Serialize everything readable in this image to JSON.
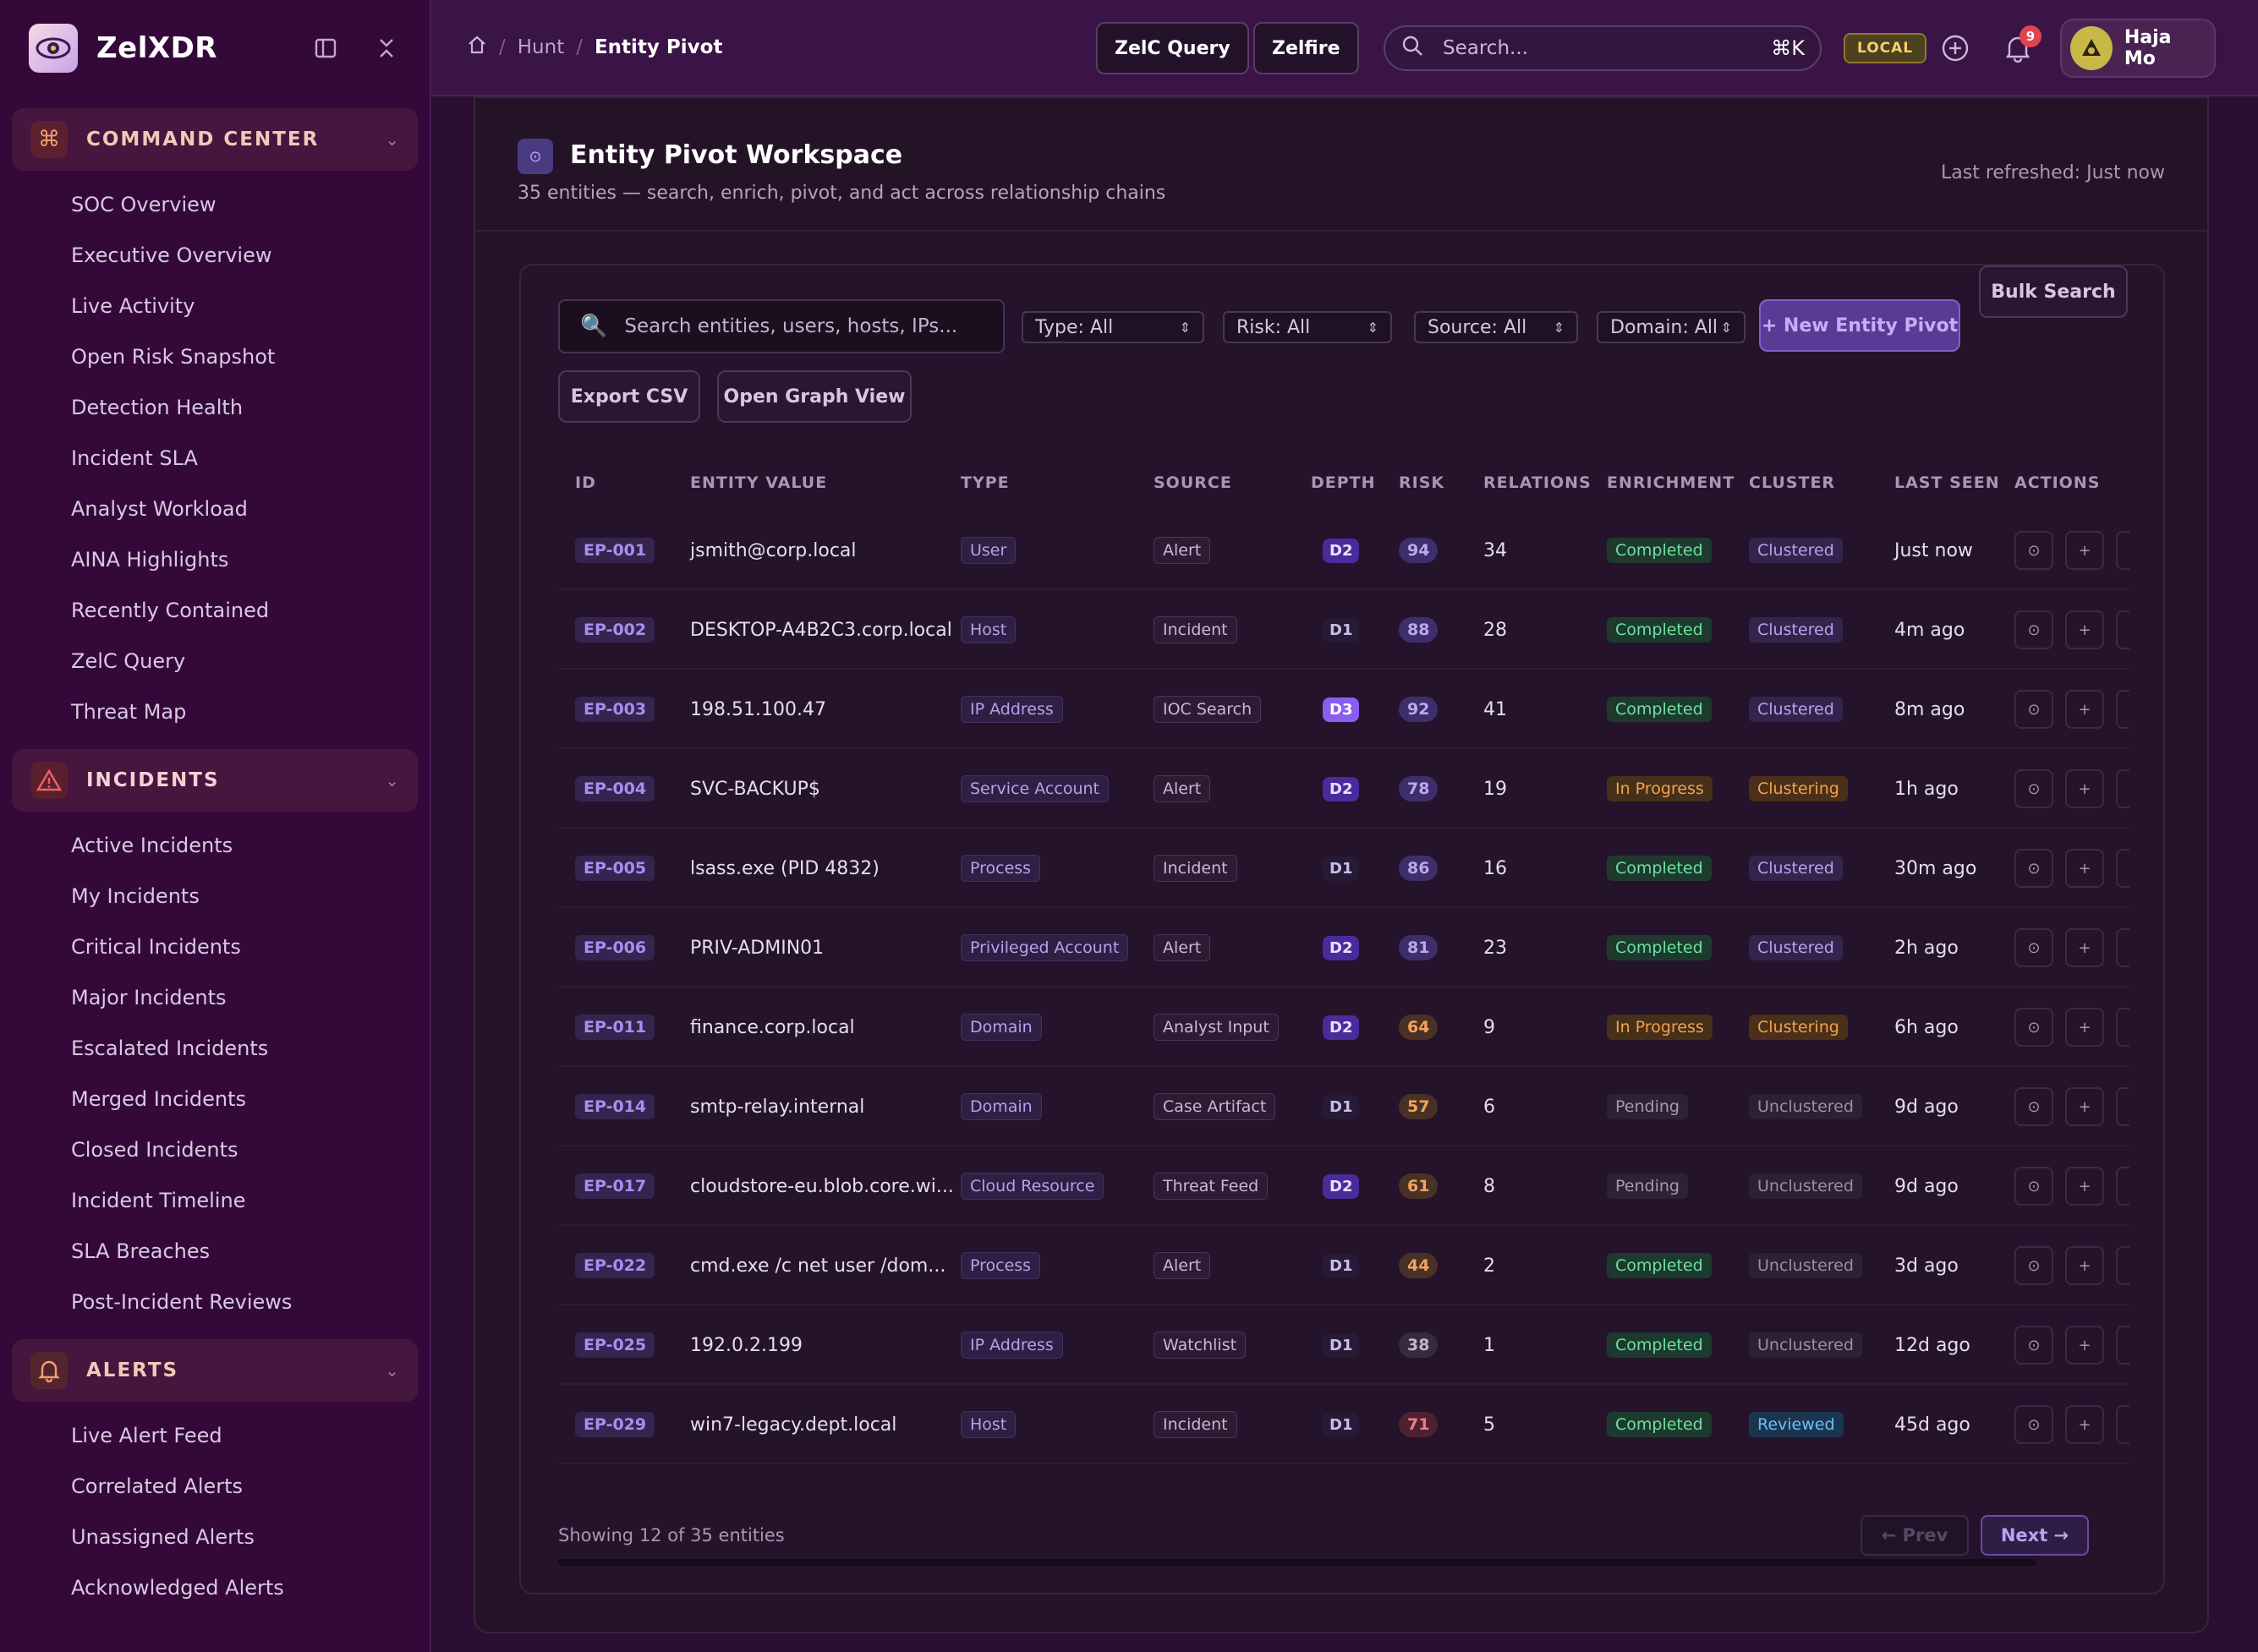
{
  "app": {
    "name": "ZelXDR"
  },
  "sidebar": {
    "sections": [
      {
        "label": "COMMAND CENTER",
        "items": [
          "SOC Overview",
          "Executive Overview",
          "Live Activity",
          "Open Risk Snapshot",
          "Detection Health",
          "Incident SLA",
          "Analyst Workload",
          "AINA Highlights",
          "Recently Contained",
          "ZelC Query",
          "Threat Map"
        ]
      },
      {
        "label": "INCIDENTS",
        "items": [
          "Active Incidents",
          "My Incidents",
          "Critical Incidents",
          "Major Incidents",
          "Escalated Incidents",
          "Merged Incidents",
          "Closed Incidents",
          "Incident Timeline",
          "SLA Breaches",
          "Post-Incident Reviews"
        ]
      },
      {
        "label": "ALERTS",
        "items": [
          "Live Alert Feed",
          "Correlated Alerts",
          "Unassigned Alerts",
          "Acknowledged Alerts"
        ]
      }
    ]
  },
  "topbar": {
    "breadcrumb": [
      "Hunt",
      "Entity Pivot"
    ],
    "zelc_query": "ZelC Query",
    "zelfire": "Zelfire",
    "search_placeholder": "Search...",
    "search_shortcut": "⌘K",
    "env_badge": "LOCAL",
    "notification_count": "9",
    "user_name": "Haja Mo"
  },
  "workspace": {
    "title": "Entity Pivot Workspace",
    "subtitle": "35 entities — search, enrich, pivot, and act across relationship chains",
    "refreshed": "Last refreshed: Just now"
  },
  "toolbar": {
    "search_placeholder": "Search entities, users, hosts, IPs...",
    "type_filter": "Type: All",
    "risk_filter": "Risk: All",
    "source_filter": "Source: All",
    "domain_filter": "Domain: All",
    "new_pivot": "+ New Entity Pivot",
    "bulk_search": "Bulk Search",
    "export_csv": "Export CSV",
    "open_graph": "Open Graph View"
  },
  "table": {
    "columns": [
      "ID",
      "ENTITY VALUE",
      "TYPE",
      "SOURCE",
      "DEPTH",
      "RISK",
      "RELATIONS",
      "ENRICHMENT",
      "CLUSTER",
      "LAST SEEN",
      "ACTIONS"
    ],
    "rows": [
      {
        "id": "EP-001",
        "value": "jsmith@corp.local",
        "type": "User",
        "source": "Alert",
        "depth": "D2",
        "risk": "94",
        "relations": "34",
        "enrichment": "Completed",
        "cluster": "Clustered",
        "last_seen": "Just now"
      },
      {
        "id": "EP-002",
        "value": "DESKTOP-A4B2C3.corp.local",
        "type": "Host",
        "source": "Incident",
        "depth": "D1",
        "risk": "88",
        "relations": "28",
        "enrichment": "Completed",
        "cluster": "Clustered",
        "last_seen": "4m ago"
      },
      {
        "id": "EP-003",
        "value": "198.51.100.47",
        "type": "IP Address",
        "source": "IOC Search",
        "depth": "D3",
        "risk": "92",
        "relations": "41",
        "enrichment": "Completed",
        "cluster": "Clustered",
        "last_seen": "8m ago"
      },
      {
        "id": "EP-004",
        "value": "SVC-BACKUP$",
        "type": "Service Account",
        "source": "Alert",
        "depth": "D2",
        "risk": "78",
        "relations": "19",
        "enrichment": "In Progress",
        "cluster": "Clustering",
        "last_seen": "1h ago"
      },
      {
        "id": "EP-005",
        "value": "lsass.exe (PID 4832)",
        "type": "Process",
        "source": "Incident",
        "depth": "D1",
        "risk": "86",
        "relations": "16",
        "enrichment": "Completed",
        "cluster": "Clustered",
        "last_seen": "30m ago"
      },
      {
        "id": "EP-006",
        "value": "PRIV-ADMIN01",
        "type": "Privileged Account",
        "source": "Alert",
        "depth": "D2",
        "risk": "81",
        "relations": "23",
        "enrichment": "Completed",
        "cluster": "Clustered",
        "last_seen": "2h ago"
      },
      {
        "id": "EP-011",
        "value": "finance.corp.local",
        "type": "Domain",
        "source": "Analyst Input",
        "depth": "D2",
        "risk": "64",
        "relations": "9",
        "enrichment": "In Progress",
        "cluster": "Clustering",
        "last_seen": "6h ago"
      },
      {
        "id": "EP-014",
        "value": "smtp-relay.internal",
        "type": "Domain",
        "source": "Case Artifact",
        "depth": "D1",
        "risk": "57",
        "relations": "6",
        "enrichment": "Pending",
        "cluster": "Unclustered",
        "last_seen": "9d ago"
      },
      {
        "id": "EP-017",
        "value": "cloudstore-eu.blob.core.wi...",
        "type": "Cloud Resource",
        "source": "Threat Feed",
        "depth": "D2",
        "risk": "61",
        "relations": "8",
        "enrichment": "Pending",
        "cluster": "Unclustered",
        "last_seen": "9d ago"
      },
      {
        "id": "EP-022",
        "value": "cmd.exe /c net user /dom...",
        "type": "Process",
        "source": "Alert",
        "depth": "D1",
        "risk": "44",
        "relations": "2",
        "enrichment": "Completed",
        "cluster": "Unclustered",
        "last_seen": "3d ago"
      },
      {
        "id": "EP-025",
        "value": "192.0.2.199",
        "type": "IP Address",
        "source": "Watchlist",
        "depth": "D1",
        "risk": "38",
        "relations": "1",
        "enrichment": "Completed",
        "cluster": "Unclustered",
        "last_seen": "12d ago"
      },
      {
        "id": "EP-029",
        "value": "win7-legacy.dept.local",
        "type": "Host",
        "source": "Incident",
        "depth": "D1",
        "risk": "71",
        "relations": "5",
        "enrichment": "Completed",
        "cluster": "Reviewed",
        "last_seen": "45d ago"
      }
    ]
  },
  "footer": {
    "showing": "Showing 12 of 35 entities",
    "prev": "← Prev",
    "next": "Next →"
  }
}
